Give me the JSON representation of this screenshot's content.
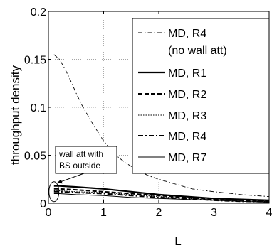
{
  "chart_data": {
    "type": "line",
    "xlabel": "L",
    "ylabel": "throughput density",
    "xlim": [
      0,
      4
    ],
    "ylim": [
      0,
      0.2
    ],
    "xticks": [
      0,
      1,
      2,
      3,
      4
    ],
    "yticks": [
      0,
      0.05,
      0.1,
      0.15,
      0.2
    ],
    "ytick_labels": [
      "0",
      "0.05",
      "0.1",
      "0.15",
      "0.2"
    ],
    "grid": true,
    "legend_position": "top-right",
    "annotation": {
      "lines": [
        "wall att with",
        "BS outside"
      ],
      "target_x": 0.1,
      "target_y": 0.012
    },
    "series": [
      {
        "name": "MD, R4",
        "name_line2": "(no wall att)",
        "style": "dashdot-thin",
        "x": [
          0.1,
          0.2,
          0.3,
          0.4,
          0.5,
          0.6,
          0.8,
          1.0,
          1.2,
          1.4,
          1.6,
          1.8,
          2.0,
          2.3,
          2.6,
          3.0,
          3.5,
          4.0
        ],
        "y": [
          0.155,
          0.15,
          0.14,
          0.128,
          0.115,
          0.103,
          0.083,
          0.065,
          0.051,
          0.042,
          0.035,
          0.029,
          0.025,
          0.02,
          0.015,
          0.012,
          0.009,
          0.007
        ]
      },
      {
        "name": "MD, R1",
        "style": "solid-thick",
        "x": [
          0.1,
          0.2,
          0.5,
          1.0,
          1.5,
          2.0,
          2.5,
          3.0,
          3.5,
          4.0
        ],
        "y": [
          0.018,
          0.018,
          0.017,
          0.015,
          0.012,
          0.009,
          0.007,
          0.005,
          0.004,
          0.003
        ]
      },
      {
        "name": "MD, R2",
        "style": "dashed-thick",
        "x": [
          0.1,
          0.2,
          0.5,
          1.0,
          1.5,
          2.0,
          2.5,
          3.0,
          3.5,
          4.0
        ],
        "y": [
          0.015,
          0.015,
          0.014,
          0.012,
          0.01,
          0.008,
          0.006,
          0.004,
          0.003,
          0.002
        ]
      },
      {
        "name": "MD, R3",
        "style": "dotted-thin",
        "x": [
          0.1,
          0.2,
          0.5,
          1.0,
          1.5,
          2.0,
          2.5,
          3.0,
          3.5,
          4.0
        ],
        "y": [
          0.013,
          0.013,
          0.012,
          0.011,
          0.009,
          0.007,
          0.005,
          0.004,
          0.003,
          0.002
        ]
      },
      {
        "name": "MD, R4",
        "style": "dashdot-thick",
        "x": [
          0.1,
          0.2,
          0.5,
          1.0,
          1.5,
          2.0,
          2.5,
          3.0,
          3.5,
          4.0
        ],
        "y": [
          0.012,
          0.012,
          0.011,
          0.01,
          0.008,
          0.006,
          0.005,
          0.003,
          0.002,
          0.0015
        ]
      },
      {
        "name": "MD, R7",
        "style": "solid-thin",
        "x": [
          0.1,
          0.2,
          0.5,
          1.0,
          1.5,
          2.0,
          2.5,
          3.0,
          3.5,
          4.0
        ],
        "y": [
          0.01,
          0.01,
          0.009,
          0.008,
          0.006,
          0.005,
          0.004,
          0.003,
          0.002,
          0.001
        ]
      }
    ]
  }
}
